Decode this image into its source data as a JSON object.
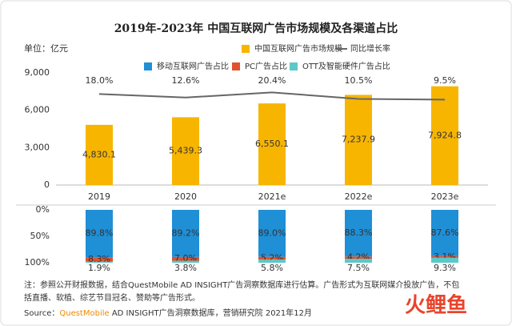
{
  "chart_data": [
    {
      "type": "bar",
      "title": "2019年-2023年 中国互联网广告市场规模及各渠道占比",
      "unit_label": "单位：亿元",
      "categories": [
        "2019",
        "2020",
        "2021e",
        "2022e",
        "2023e"
      ],
      "series": [
        {
          "name": "中国互联网广告市场规模",
          "color": "#f7b500",
          "values": [
            4830.1,
            5439.3,
            6550.1,
            7237.9,
            7924.8
          ],
          "value_labels": [
            "4,830.1",
            "5,439.3",
            "6,550.1",
            "7,237.9",
            "7,924.8"
          ]
        },
        {
          "name": "同比增长率",
          "type": "line",
          "axis": "y2",
          "color": "#666666",
          "values": [
            18.0,
            12.6,
            20.4,
            10.5,
            9.5
          ],
          "value_labels": [
            "18.0%",
            "12.6%",
            "20.4%",
            "10.5%",
            "9.5%"
          ]
        }
      ],
      "ylim": [
        0,
        9000
      ],
      "yticks": [
        0,
        {
          "value": 3000,
          "label": "3,000"
        },
        {
          "value": 6000,
          "label": "6,000"
        },
        {
          "value": 9000,
          "label": "9,000"
        }
      ],
      "y2lim": [
        -120,
        50
      ],
      "grid": false
    },
    {
      "type": "stacked_bar",
      "series": [
        {
          "name": "移动互联网广告占比",
          "color": "#1f8fd6",
          "values": [
            89.8,
            89.2,
            89.0,
            88.3,
            87.6
          ],
          "value_labels": [
            "89.8%",
            "89.2%",
            "89.0%",
            "88.3%",
            "87.6%"
          ]
        },
        {
          "name": "PC广告占比",
          "color": "#e0522e",
          "values": [
            8.3,
            7.0,
            5.2,
            4.2,
            3.1
          ],
          "value_labels": [
            "8.3%",
            "7.0%",
            "5.2%",
            "4.2%",
            "3.1%"
          ]
        },
        {
          "name": "OTT及智能硬件广告占比",
          "color": "#5cc8c8",
          "values": [
            1.9,
            3.8,
            5.8,
            7.5,
            9.3
          ],
          "value_labels": [
            "1.9%",
            "3.8%",
            "5.8%",
            "7.5%",
            "9.3%"
          ]
        }
      ],
      "ylim": [
        0,
        100
      ],
      "yticks": [
        {
          "value": 0,
          "label": "0%"
        },
        {
          "value": 50,
          "label": "50%"
        },
        {
          "value": 100,
          "label": "100%"
        }
      ],
      "reversed": true
    }
  ],
  "note": [
    "注：参照公开财报数据，结合QuestMobile AD INSIGHT广告洞察数据库进行估算。广告形式为互联网媒介投放广告，不包",
    "括直播、软植、综艺节目冠名、赞助等广告形式。"
  ],
  "source": {
    "label": "Source：",
    "brand": "QuestMobile",
    "text": " AD INSIGHT广告洞察数据库，营销研究院 2021年12月"
  },
  "watermark": "火鲤鱼"
}
